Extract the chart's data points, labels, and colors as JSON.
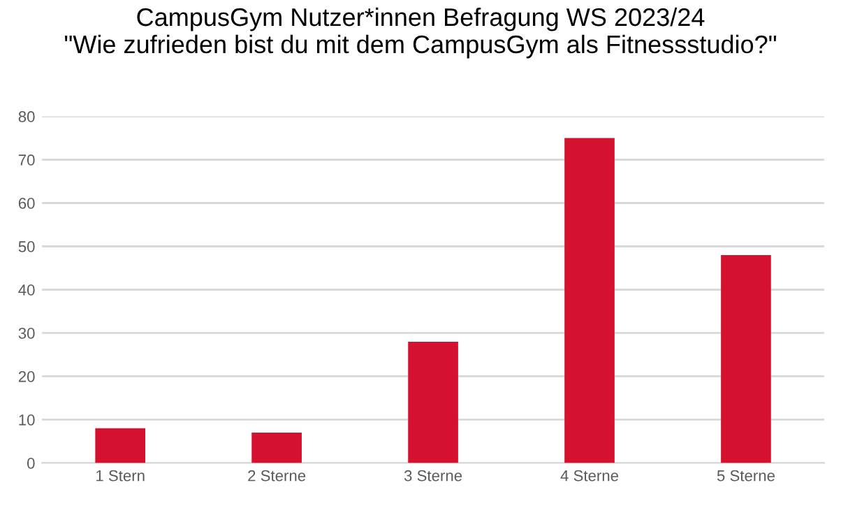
{
  "chart_data": {
    "type": "bar",
    "title": "CampusGym Nutzer*innen Befragung WS 2023/24\n\"Wie zufrieden bist du mit dem CampusGym als Fitnessstudio?\"",
    "categories": [
      "1 Stern",
      "2 Sterne",
      "3 Sterne",
      "4 Sterne",
      "5 Sterne"
    ],
    "values": [
      8,
      7,
      28,
      75,
      48
    ],
    "color": "#d51130",
    "ylim": [
      0,
      80
    ],
    "yticks": [
      0,
      10,
      20,
      30,
      40,
      50,
      60,
      70,
      80
    ],
    "grid": "y",
    "legend": false
  }
}
